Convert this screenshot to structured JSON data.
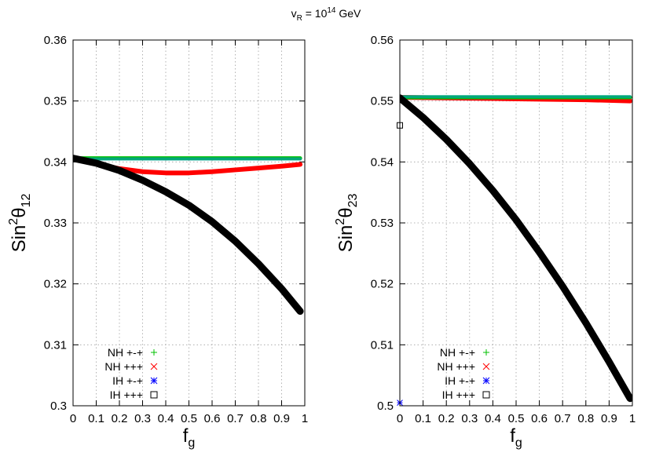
{
  "title": {
    "main": "v",
    "sub": "R",
    "mid": " = 10",
    "sup": "14",
    "tail": " GeV"
  },
  "legend": [
    {
      "label": "NH +-+",
      "symbol": "plus",
      "color": "#00c000"
    },
    {
      "label": "NH +++",
      "symbol": "cross",
      "color": "#ff0000"
    },
    {
      "label": "IH +-+",
      "symbol": "star",
      "color": "#0000ff"
    },
    {
      "label": "IH +++",
      "symbol": "square",
      "color": "#000000"
    }
  ],
  "chart_data": [
    {
      "type": "scatter",
      "xlabel": {
        "main": "f",
        "sub": "g"
      },
      "ylabel": {
        "main": "Sin",
        "sup": "2",
        "theta": "θ",
        "sub": "12"
      },
      "xlim": [
        0,
        1
      ],
      "ylim": [
        0.3,
        0.36
      ],
      "xticks": [
        "0",
        "0.1",
        "0.2",
        "0.3",
        "0.4",
        "0.5",
        "0.6",
        "0.7",
        "0.8",
        "0.9",
        "1"
      ],
      "yticks": [
        "0.3",
        "0.31",
        "0.32",
        "0.33",
        "0.34",
        "0.35",
        "0.36"
      ],
      "grid": true,
      "legend_position": "bottom-left",
      "series": [
        {
          "name": "NH +-+",
          "color": "#00c000",
          "x": [
            0,
            0.2,
            0.4,
            0.6,
            0.8,
            0.98
          ],
          "y": [
            0.3406,
            0.3406,
            0.3406,
            0.3406,
            0.3406,
            0.3406
          ]
        },
        {
          "name": "NH +++",
          "color": "#ff0000",
          "x": [
            0,
            0.1,
            0.2,
            0.3,
            0.4,
            0.5,
            0.6,
            0.7,
            0.8,
            0.9,
            0.98
          ],
          "y": [
            0.3405,
            0.3397,
            0.3389,
            0.3384,
            0.3382,
            0.3382,
            0.3384,
            0.3387,
            0.339,
            0.3393,
            0.3396
          ]
        },
        {
          "name": "IH +-+",
          "color": "#0000ff",
          "x": [
            0,
            0.2,
            0.4,
            0.6,
            0.8,
            0.98
          ],
          "y": [
            0.3405,
            0.3405,
            0.3405,
            0.3405,
            0.3405,
            0.3405
          ]
        },
        {
          "name": "IH +++",
          "color": "#000000",
          "x": [
            0,
            0.1,
            0.2,
            0.3,
            0.4,
            0.5,
            0.6,
            0.7,
            0.8,
            0.9,
            0.98
          ],
          "y": [
            0.3406,
            0.3398,
            0.3386,
            0.337,
            0.3351,
            0.3329,
            0.3302,
            0.327,
            0.3233,
            0.3192,
            0.3155
          ]
        }
      ]
    },
    {
      "type": "scatter",
      "xlabel": {
        "main": "f",
        "sub": "g"
      },
      "ylabel": {
        "main": "Sin",
        "sup": "2",
        "theta": "θ",
        "sub": "23"
      },
      "xlim": [
        0,
        1
      ],
      "ylim": [
        0.5,
        0.56
      ],
      "xticks": [
        "0",
        "0.1",
        "0.2",
        "0.3",
        "0.4",
        "0.5",
        "0.6",
        "0.7",
        "0.8",
        "0.9",
        "1"
      ],
      "yticks": [
        "0.5",
        "0.51",
        "0.52",
        "0.53",
        "0.54",
        "0.55",
        "0.56"
      ],
      "grid": true,
      "legend_position": "bottom-right",
      "series": [
        {
          "name": "NH +-+",
          "color": "#00c000",
          "x": [
            0,
            0.2,
            0.4,
            0.6,
            0.8,
            0.99
          ],
          "y": [
            0.5506,
            0.5506,
            0.5506,
            0.5506,
            0.5506,
            0.5506
          ]
        },
        {
          "name": "NH +++",
          "color": "#ff0000",
          "x": [
            0,
            0.2,
            0.4,
            0.6,
            0.8,
            0.99
          ],
          "y": [
            0.5506,
            0.5505,
            0.5504,
            0.5503,
            0.5502,
            0.55
          ]
        },
        {
          "name": "IH +-+",
          "color": "#0000ff",
          "x": [
            0,
            0.2,
            0.4,
            0.6,
            0.8,
            0.99
          ],
          "y": [
            0.5507,
            0.5507,
            0.5507,
            0.5507,
            0.5507,
            0.5507
          ],
          "extra_points": [
            [
              0.0,
              0.5005
            ]
          ]
        },
        {
          "name": "IH +++",
          "color": "#000000",
          "x": [
            0,
            0.1,
            0.2,
            0.3,
            0.4,
            0.5,
            0.6,
            0.7,
            0.8,
            0.9,
            0.99
          ],
          "y": [
            0.5505,
            0.5473,
            0.5437,
            0.5397,
            0.5353,
            0.5305,
            0.5252,
            0.5196,
            0.5136,
            0.5072,
            0.5012
          ],
          "extra_points": [
            [
              0.0,
              0.546
            ]
          ]
        }
      ]
    }
  ]
}
